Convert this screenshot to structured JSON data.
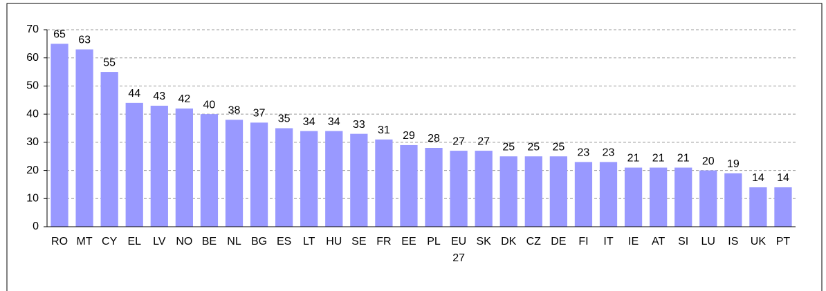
{
  "chart_data": {
    "type": "bar",
    "categories": [
      "RO",
      "MT",
      "CY",
      "EL",
      "LV",
      "NO",
      "BE",
      "NL",
      "BG",
      "ES",
      "LT",
      "HU",
      "SE",
      "FR",
      "EE",
      "PL",
      "EU 27",
      "SK",
      "DK",
      "CZ",
      "DE",
      "FI",
      "IT",
      "IE",
      "AT",
      "SI",
      "LU",
      "IS",
      "UK",
      "PT"
    ],
    "values": [
      65,
      63,
      55,
      44,
      43,
      42,
      40,
      38,
      37,
      35,
      34,
      34,
      33,
      31,
      29,
      28,
      27,
      27,
      25,
      25,
      25,
      23,
      23,
      21,
      21,
      21,
      20,
      19,
      14,
      14
    ],
    "color": "#9999ff",
    "ylim": [
      0,
      70
    ],
    "yticks": [
      0,
      10,
      20,
      30,
      40,
      50,
      60,
      70
    ],
    "grid": true
  }
}
